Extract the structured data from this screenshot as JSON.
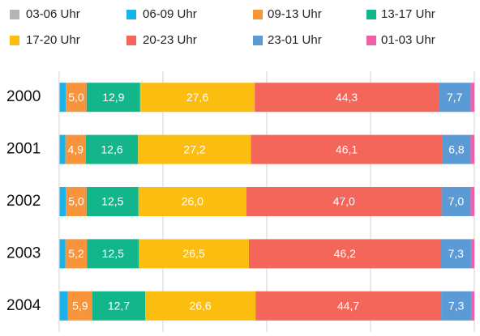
{
  "chart_data": {
    "type": "stacked_bar_horizontal",
    "categories": [
      "2000",
      "2001",
      "2002",
      "2003",
      "2004"
    ],
    "series": [
      {
        "name": "03-06 Uhr",
        "color": "#b4b4b4",
        "values": [
          0.2,
          0.2,
          0.2,
          0.2,
          0.2
        ]
      },
      {
        "name": "06-09 Uhr",
        "color": "#1ab0e8",
        "values": [
          1.4,
          1.3,
          1.4,
          1.3,
          1.9
        ]
      },
      {
        "name": "09-13 Uhr",
        "color": "#f7943c",
        "values": [
          5.0,
          4.9,
          5.0,
          5.2,
          5.9
        ],
        "value_labels": [
          "5,0",
          "4,9",
          "5,0",
          "5,2",
          "5,9"
        ]
      },
      {
        "name": "13-17 Uhr",
        "color": "#13b58b",
        "values": [
          12.9,
          12.6,
          12.5,
          12.5,
          12.7
        ],
        "value_labels": [
          "12,9",
          "12,6",
          "12,5",
          "12,5",
          "12,7"
        ]
      },
      {
        "name": "17-20 Uhr",
        "color": "#fbbd0f",
        "values": [
          27.6,
          27.2,
          26.0,
          26.5,
          26.6
        ],
        "value_labels": [
          "27,6",
          "27,2",
          "26,0",
          "26,5",
          "26,6"
        ]
      },
      {
        "name": "20-23 Uhr",
        "color": "#f4665a",
        "values": [
          44.3,
          46.1,
          47.0,
          46.2,
          44.7
        ],
        "value_labels": [
          "44,3",
          "46,1",
          "47,0",
          "46,2",
          "44,7"
        ]
      },
      {
        "name": "23-01 Uhr",
        "color": "#5b9bd5",
        "values": [
          7.7,
          6.8,
          7.0,
          7.3,
          7.3
        ],
        "value_labels": [
          "7,7",
          "6,8",
          "7,0",
          "7,3",
          "7,3"
        ]
      },
      {
        "name": "01-03 Uhr",
        "color": "#f060a8",
        "values": [
          0.9,
          0.9,
          0.9,
          0.8,
          0.7
        ]
      }
    ],
    "xlim": [
      0,
      100
    ],
    "xticks": [
      0,
      25,
      50,
      75,
      100
    ],
    "grid": true,
    "legend": "top"
  }
}
